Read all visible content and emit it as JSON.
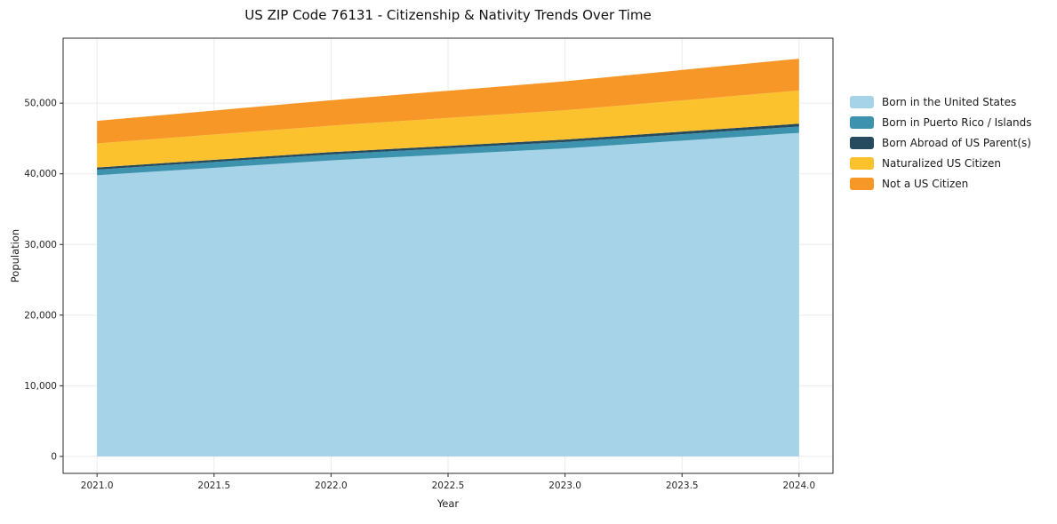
{
  "chart_data": {
    "type": "area",
    "stacked": true,
    "title": "US ZIP Code 76131 - Citizenship & Nativity Trends Over Time",
    "xlabel": "Year",
    "ylabel": "Population",
    "x": [
      2021,
      2022,
      2023,
      2024
    ],
    "series": [
      {
        "name": "Born in the United States",
        "color": "#a6d3e8",
        "values": [
          39800,
          41900,
          43600,
          45800
        ]
      },
      {
        "name": "Born in Puerto Rico / Islands",
        "color": "#3d93ad",
        "values": [
          800,
          850,
          900,
          900
        ]
      },
      {
        "name": "Born Abroad of US Parent(s)",
        "color": "#264a5e",
        "values": [
          300,
          320,
          350,
          400
        ]
      },
      {
        "name": "Naturalized US Citizen",
        "color": "#fcc22d",
        "values": [
          3400,
          3750,
          4150,
          4700
        ]
      },
      {
        "name": "Not a US Citizen",
        "color": "#f79728",
        "values": [
          3200,
          3600,
          4100,
          4500
        ]
      }
    ],
    "xlim": [
      2020.855,
      2024.145
    ],
    "ylim": [
      -2400,
      59200
    ],
    "xticks": [
      {
        "v": 2021.0,
        "label": "2021.0"
      },
      {
        "v": 2021.5,
        "label": "2021.5"
      },
      {
        "v": 2022.0,
        "label": "2022.0"
      },
      {
        "v": 2022.5,
        "label": "2022.5"
      },
      {
        "v": 2023.0,
        "label": "2023.0"
      },
      {
        "v": 2023.5,
        "label": "2023.5"
      },
      {
        "v": 2024.0,
        "label": "2024.0"
      }
    ],
    "yticks": [
      {
        "v": 0,
        "label": "0"
      },
      {
        "v": 10000,
        "label": "10,000"
      },
      {
        "v": 20000,
        "label": "20,000"
      },
      {
        "v": 30000,
        "label": "30,000"
      },
      {
        "v": 40000,
        "label": "40,000"
      },
      {
        "v": 50000,
        "label": "50,000"
      }
    ],
    "grid": true,
    "legend_position": "right"
  }
}
